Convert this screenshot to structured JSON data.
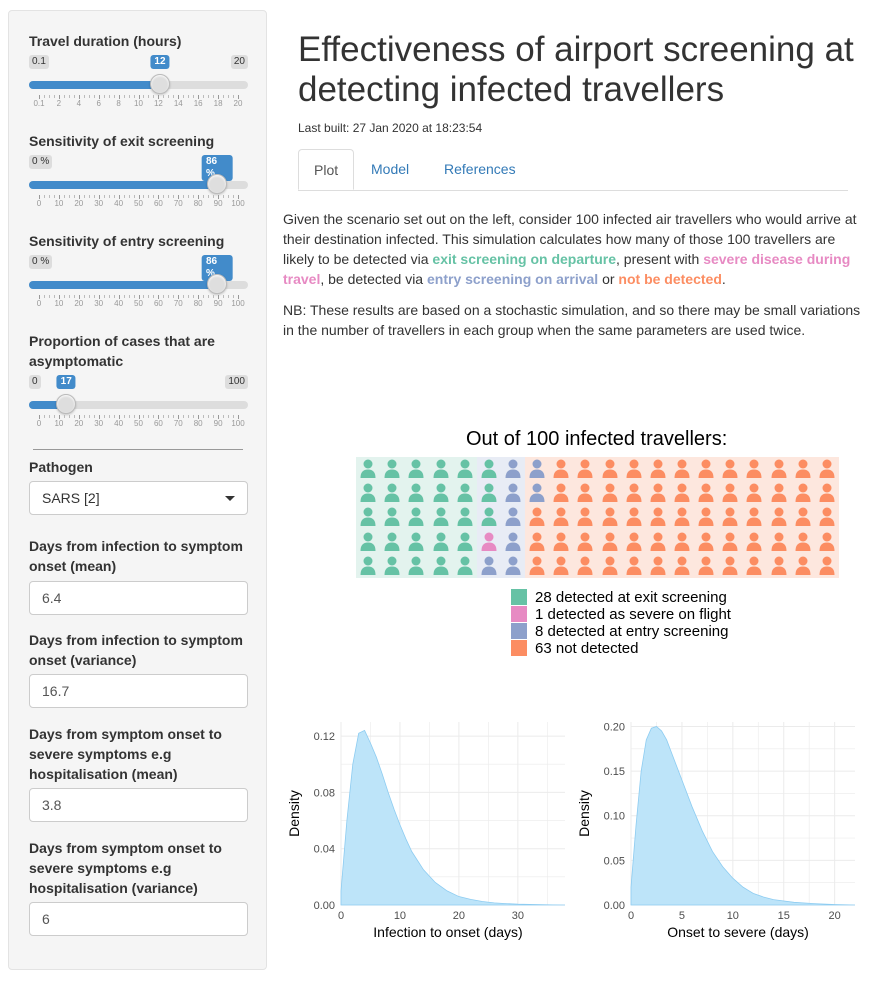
{
  "sidebar": {
    "travel": {
      "label": "Travel duration (hours)",
      "min": "0.1",
      "max": "20",
      "value": "12",
      "fraction": 0.598,
      "ticks": [
        "0.1",
        "2",
        "4",
        "6",
        "8",
        "10",
        "12",
        "14",
        "16",
        "18",
        "20"
      ]
    },
    "exit": {
      "label": "Sensitivity of exit screening",
      "min": "0 %",
      "value": "86 %",
      "fraction": 0.86,
      "ticks": [
        "0",
        "10",
        "20",
        "30",
        "40",
        "50",
        "60",
        "70",
        "80",
        "90",
        "100"
      ]
    },
    "entry": {
      "label": "Sensitivity of entry screening",
      "min": "0 %",
      "value": "86 %",
      "fraction": 0.86,
      "ticks": [
        "0",
        "10",
        "20",
        "30",
        "40",
        "50",
        "60",
        "70",
        "80",
        "90",
        "100"
      ]
    },
    "asym": {
      "label_line1": "Proportion of cases that are",
      "label_line2": "asymptomatic",
      "min": "0",
      "max": "100",
      "value": "17",
      "fraction": 0.17,
      "ticks": [
        "0",
        "10",
        "20",
        "30",
        "40",
        "50",
        "60",
        "70",
        "80",
        "90",
        "100"
      ]
    },
    "pathogen": {
      "label": "Pathogen",
      "value": "SARS [2]"
    },
    "inc_mean": {
      "label_line1": "Days from infection to symptom",
      "label_line2": "onset (mean)",
      "value": "6.4"
    },
    "inc_var": {
      "label_line1": "Days from infection to symptom",
      "label_line2": "onset (variance)",
      "value": "16.7"
    },
    "sev_mean": {
      "label_line1": "Days from symptom onset to",
      "label_line2": "severe symptoms e.g",
      "label_line3": "hospitalisation (mean)",
      "value": "3.8"
    },
    "sev_var": {
      "label_line1": "Days from symptom onset to",
      "label_line2": "severe symptoms e.g",
      "label_line3": "hospitalisation (variance)",
      "value": "6"
    }
  },
  "main": {
    "title": "Effectiveness of airport screening at detecting infected travellers",
    "built": "Last built: 27 Jan 2020 at 18:23:54",
    "tabs": [
      "Plot",
      "Model",
      "References"
    ],
    "para1": {
      "a": "Given the scenario set out on the left, consider 100 infected air travellers who would arrive at their destination infected. This simulation calculates how many of those 100 travellers are likely to be detected via ",
      "exit": "exit screening on departure",
      "b": ", present with ",
      "severe": "severe disease during travel",
      "c": ", be detected via ",
      "entry": "entry screening on arrival",
      "d": " or ",
      "not": "not be detected",
      "e": "."
    },
    "para2": "NB: These results are based on a stochastic simulation, and so there may be small variations in the number of travellers in each group when the same parameters are used twice."
  },
  "waffle": {
    "title": "Out of 100 infected travellers:",
    "counts": {
      "exit": 28,
      "severe": 1,
      "entry": 8,
      "not": 63
    },
    "legend": [
      "28 detected at exit screening",
      "1 detected as severe on flight",
      "8 detected at entry screening",
      "63 not detected"
    ],
    "colors": {
      "exit": "#66c2a5",
      "severe": "#e78ac3",
      "entry": "#8da0cb",
      "not": "#fc8d62"
    }
  },
  "chart_data": [
    {
      "type": "area",
      "xlabel": "Infection to onset (days)",
      "ylabel": "Density",
      "xlim": [
        0,
        38
      ],
      "ylim": [
        0,
        0.13
      ],
      "xticks": [
        "0",
        "10",
        "20",
        "30"
      ],
      "yticks": [
        "0.00",
        "0.04",
        "0.08",
        "0.12"
      ],
      "x": [
        0,
        1,
        2,
        3,
        4,
        5,
        6,
        7,
        8,
        9,
        10,
        11,
        12,
        14,
        16,
        18,
        20,
        22,
        24,
        26,
        28,
        30,
        33,
        36,
        38
      ],
      "y": [
        0.01,
        0.06,
        0.1,
        0.122,
        0.124,
        0.115,
        0.105,
        0.093,
        0.08,
        0.068,
        0.057,
        0.047,
        0.038,
        0.025,
        0.016,
        0.01,
        0.006,
        0.004,
        0.0025,
        0.0015,
        0.001,
        0.0006,
        0.0003,
        0.0001,
        0.0
      ]
    },
    {
      "type": "area",
      "xlabel": "Onset to severe (days)",
      "ylabel": "Density",
      "xlim": [
        0,
        22
      ],
      "ylim": [
        0,
        0.205
      ],
      "xticks": [
        "0",
        "5",
        "10",
        "15",
        "20"
      ],
      "yticks": [
        "0.00",
        "0.05",
        "0.10",
        "0.15",
        "0.20"
      ],
      "x": [
        0,
        0.5,
        1,
        1.5,
        2,
        2.5,
        3,
        3.5,
        4,
        5,
        6,
        7,
        8,
        9,
        10,
        11,
        12,
        13,
        14,
        16,
        18,
        20,
        22
      ],
      "y": [
        0.02,
        0.09,
        0.15,
        0.185,
        0.198,
        0.2,
        0.195,
        0.185,
        0.17,
        0.14,
        0.11,
        0.083,
        0.06,
        0.043,
        0.03,
        0.02,
        0.013,
        0.009,
        0.006,
        0.003,
        0.0015,
        0.0005,
        0.0
      ]
    }
  ]
}
